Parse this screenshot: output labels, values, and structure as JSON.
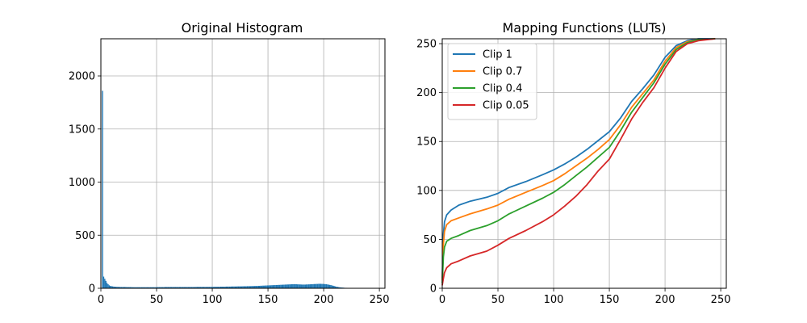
{
  "chart_data": [
    {
      "type": "bar",
      "title": "Original Histogram",
      "xlabel": "",
      "ylabel": "",
      "xlim": [
        0,
        255
      ],
      "ylim": [
        0,
        2350
      ],
      "grid": true,
      "xticks": [
        0,
        50,
        100,
        150,
        200,
        250
      ],
      "yticks": [
        0,
        500,
        1000,
        1500,
        2000
      ],
      "color": "#1f77b4",
      "values": [
        0,
        1860,
        110,
        90,
        70,
        50,
        38,
        28,
        22,
        20,
        18,
        16,
        15,
        14,
        14,
        13,
        13,
        12,
        12,
        12,
        12,
        12,
        12,
        11,
        11,
        11,
        11,
        11,
        10,
        10,
        10,
        10,
        10,
        10,
        10,
        10,
        10,
        10,
        10,
        10,
        10,
        10,
        10,
        10,
        10,
        10,
        10,
        10,
        10,
        10,
        11,
        11,
        11,
        11,
        11,
        11,
        11,
        12,
        12,
        12,
        12,
        12,
        12,
        12,
        12,
        12,
        12,
        12,
        12,
        12,
        12,
        12,
        12,
        12,
        12,
        12,
        12,
        12,
        12,
        12,
        12,
        12,
        12,
        12,
        12,
        13,
        13,
        13,
        13,
        13,
        13,
        13,
        13,
        13,
        13,
        13,
        13,
        13,
        13,
        13,
        13,
        14,
        14,
        14,
        14,
        14,
        14,
        15,
        15,
        15,
        15,
        15,
        16,
        16,
        16,
        16,
        16,
        17,
        17,
        17,
        17,
        17,
        18,
        18,
        18,
        18,
        18,
        19,
        19,
        19,
        19,
        20,
        20,
        20,
        20,
        21,
        21,
        21,
        22,
        22,
        22,
        23,
        23,
        24,
        24,
        25,
        25,
        26,
        26,
        27,
        27,
        28,
        28,
        29,
        29,
        30,
        30,
        31,
        31,
        32,
        32,
        33,
        33,
        34,
        34,
        35,
        35,
        36,
        36,
        37,
        37,
        38,
        38,
        39,
        38,
        38,
        37,
        37,
        36,
        36,
        35,
        35,
        35,
        35,
        36,
        36,
        37,
        37,
        38,
        38,
        39,
        40,
        40,
        41,
        41,
        42,
        42,
        42,
        41,
        41,
        40,
        39,
        38,
        36,
        34,
        32,
        30,
        27,
        24,
        21,
        18,
        15,
        13,
        11,
        9,
        8,
        7,
        6,
        5,
        4,
        4,
        3,
        3,
        3,
        2,
        2,
        2,
        2,
        2,
        1,
        1,
        1,
        1,
        1,
        1,
        1,
        0,
        0,
        0,
        0,
        0,
        0,
        0,
        0,
        0,
        0,
        0,
        0,
        0,
        0,
        0,
        0,
        0,
        0,
        0,
        0,
        0,
        0
      ]
    },
    {
      "type": "line",
      "title": "Mapping Functions (LUTs)",
      "xlabel": "",
      "ylabel": "",
      "xlim": [
        0,
        255
      ],
      "ylim": [
        0,
        255
      ],
      "grid": true,
      "legend": "top-left",
      "xticks": [
        0,
        50,
        100,
        150,
        200,
        250
      ],
      "yticks": [
        0,
        50,
        100,
        150,
        200,
        250
      ],
      "series": [
        {
          "name": "Clip 1",
          "color": "#1f77b4",
          "points": [
            [
              0,
              10
            ],
            [
              1,
              55
            ],
            [
              2,
              68
            ],
            [
              4,
              75
            ],
            [
              8,
              80
            ],
            [
              15,
              85
            ],
            [
              25,
              89
            ],
            [
              40,
              93
            ],
            [
              50,
              97
            ],
            [
              60,
              103
            ],
            [
              75,
              109
            ],
            [
              90,
              116
            ],
            [
              100,
              121
            ],
            [
              110,
              127
            ],
            [
              120,
              134
            ],
            [
              130,
              142
            ],
            [
              140,
              151
            ],
            [
              150,
              160
            ],
            [
              160,
              174
            ],
            [
              170,
              191
            ],
            [
              180,
              204
            ],
            [
              190,
              218
            ],
            [
              200,
              236
            ],
            [
              210,
              248
            ],
            [
              220,
              253
            ],
            [
              230,
              255
            ],
            [
              245,
              255
            ]
          ]
        },
        {
          "name": "Clip 0.7",
          "color": "#ff7f0e",
          "points": [
            [
              0,
              8
            ],
            [
              1,
              45
            ],
            [
              2,
              58
            ],
            [
              4,
              65
            ],
            [
              8,
              69
            ],
            [
              15,
              72
            ],
            [
              25,
              76
            ],
            [
              40,
              81
            ],
            [
              50,
              85
            ],
            [
              60,
              91
            ],
            [
              75,
              98
            ],
            [
              90,
              105
            ],
            [
              100,
              110
            ],
            [
              110,
              117
            ],
            [
              120,
              125
            ],
            [
              130,
              133
            ],
            [
              140,
              142
            ],
            [
              150,
              152
            ],
            [
              160,
              167
            ],
            [
              170,
              185
            ],
            [
              180,
              199
            ],
            [
              190,
              213
            ],
            [
              200,
              232
            ],
            [
              210,
              246
            ],
            [
              220,
              252
            ],
            [
              230,
              254
            ],
            [
              245,
              255
            ]
          ]
        },
        {
          "name": "Clip 0.4",
          "color": "#2ca02c",
          "points": [
            [
              0,
              5
            ],
            [
              1,
              32
            ],
            [
              2,
              42
            ],
            [
              4,
              48
            ],
            [
              8,
              51
            ],
            [
              15,
              54
            ],
            [
              25,
              59
            ],
            [
              40,
              64
            ],
            [
              50,
              69
            ],
            [
              60,
              76
            ],
            [
              75,
              84
            ],
            [
              90,
              92
            ],
            [
              100,
              98
            ],
            [
              110,
              106
            ],
            [
              120,
              115
            ],
            [
              130,
              124
            ],
            [
              140,
              134
            ],
            [
              150,
              144
            ],
            [
              160,
              161
            ],
            [
              170,
              180
            ],
            [
              180,
              195
            ],
            [
              190,
              210
            ],
            [
              200,
              229
            ],
            [
              210,
              244
            ],
            [
              220,
              251
            ],
            [
              230,
              254
            ],
            [
              245,
              255
            ]
          ]
        },
        {
          "name": "Clip 0.05",
          "color": "#d62728",
          "points": [
            [
              0,
              3
            ],
            [
              1,
              10
            ],
            [
              2,
              16
            ],
            [
              4,
              21
            ],
            [
              8,
              25
            ],
            [
              15,
              28
            ],
            [
              25,
              33
            ],
            [
              40,
              38
            ],
            [
              50,
              44
            ],
            [
              60,
              51
            ],
            [
              75,
              59
            ],
            [
              90,
              68
            ],
            [
              100,
              75
            ],
            [
              110,
              84
            ],
            [
              120,
              94
            ],
            [
              130,
              106
            ],
            [
              140,
              120
            ],
            [
              150,
              132
            ],
            [
              160,
              152
            ],
            [
              170,
              173
            ],
            [
              180,
              190
            ],
            [
              190,
              205
            ],
            [
              200,
              225
            ],
            [
              210,
              242
            ],
            [
              220,
              250
            ],
            [
              230,
              253
            ],
            [
              245,
              255
            ]
          ]
        }
      ]
    }
  ]
}
